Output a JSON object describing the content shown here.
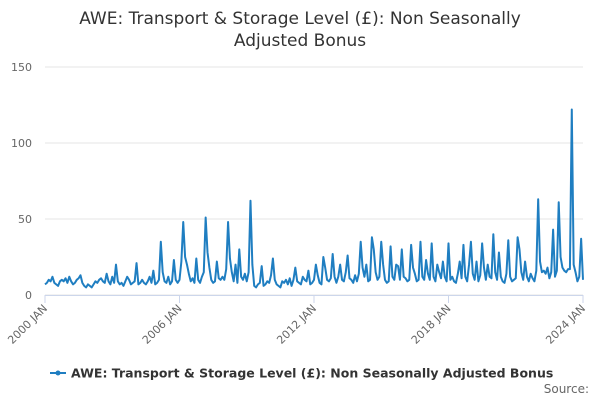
{
  "chart_data": {
    "type": "line",
    "title": "AWE: Transport & Storage Level (£): Non Seasonally Adjusted Bonus",
    "source": "Source:",
    "legend": "bottom",
    "grid": true,
    "ylim": [
      0,
      150
    ],
    "yticks": [
      0,
      50,
      100,
      150
    ],
    "xlim": [
      "2000-01",
      "2024-01"
    ],
    "xticks": [
      {
        "value": "2000-01",
        "label": "2000 JAN"
      },
      {
        "value": "2006-01",
        "label": "2006 JAN"
      },
      {
        "value": "2012-01",
        "label": "2012 JAN"
      },
      {
        "value": "2018-01",
        "label": "2018 JAN"
      },
      {
        "value": "2024-01",
        "label": "2024 JAN"
      }
    ],
    "x": [
      "2000-01",
      "2000-02",
      "2000-03",
      "2000-04",
      "2000-05",
      "2000-06",
      "2000-07",
      "2000-08",
      "2000-09",
      "2000-10",
      "2000-11",
      "2000-12",
      "2001-01",
      "2001-02",
      "2001-03",
      "2001-04",
      "2001-05",
      "2001-06",
      "2001-07",
      "2001-08",
      "2001-09",
      "2001-10",
      "2001-11",
      "2001-12",
      "2002-01",
      "2002-02",
      "2002-03",
      "2002-04",
      "2002-05",
      "2002-06",
      "2002-07",
      "2002-08",
      "2002-09",
      "2002-10",
      "2002-11",
      "2002-12",
      "2003-01",
      "2003-02",
      "2003-03",
      "2003-04",
      "2003-05",
      "2003-06",
      "2003-07",
      "2003-08",
      "2003-09",
      "2003-10",
      "2003-11",
      "2003-12",
      "2004-01",
      "2004-02",
      "2004-03",
      "2004-04",
      "2004-05",
      "2004-06",
      "2004-07",
      "2004-08",
      "2004-09",
      "2004-10",
      "2004-11",
      "2004-12",
      "2005-01",
      "2005-02",
      "2005-03",
      "2005-04",
      "2005-05",
      "2005-06",
      "2005-07",
      "2005-08",
      "2005-09",
      "2005-10",
      "2005-11",
      "2005-12",
      "2006-01",
      "2006-02",
      "2006-03",
      "2006-04",
      "2006-05",
      "2006-06",
      "2006-07",
      "2006-08",
      "2006-09",
      "2006-10",
      "2006-11",
      "2006-12",
      "2007-01",
      "2007-02",
      "2007-03",
      "2007-04",
      "2007-05",
      "2007-06",
      "2007-07",
      "2007-08",
      "2007-09",
      "2007-10",
      "2007-11",
      "2007-12",
      "2008-01",
      "2008-02",
      "2008-03",
      "2008-04",
      "2008-05",
      "2008-06",
      "2008-07",
      "2008-08",
      "2008-09",
      "2008-10",
      "2008-11",
      "2008-12",
      "2009-01",
      "2009-02",
      "2009-03",
      "2009-04",
      "2009-05",
      "2009-06",
      "2009-07",
      "2009-08",
      "2009-09",
      "2009-10",
      "2009-11",
      "2009-12",
      "2010-01",
      "2010-02",
      "2010-03",
      "2010-04",
      "2010-05",
      "2010-06",
      "2010-07",
      "2010-08",
      "2010-09",
      "2010-10",
      "2010-11",
      "2010-12",
      "2011-01",
      "2011-02",
      "2011-03",
      "2011-04",
      "2011-05",
      "2011-06",
      "2011-07",
      "2011-08",
      "2011-09",
      "2011-10",
      "2011-11",
      "2011-12",
      "2012-01",
      "2012-02",
      "2012-03",
      "2012-04",
      "2012-05",
      "2012-06",
      "2012-07",
      "2012-08",
      "2012-09",
      "2012-10",
      "2012-11",
      "2012-12",
      "2013-01",
      "2013-02",
      "2013-03",
      "2013-04",
      "2013-05",
      "2013-06",
      "2013-07",
      "2013-08",
      "2013-09",
      "2013-10",
      "2013-11",
      "2013-12",
      "2014-01",
      "2014-02",
      "2014-03",
      "2014-04",
      "2014-05",
      "2014-06",
      "2014-07",
      "2014-08",
      "2014-09",
      "2014-10",
      "2014-11",
      "2014-12",
      "2015-01",
      "2015-02",
      "2015-03",
      "2015-04",
      "2015-05",
      "2015-06",
      "2015-07",
      "2015-08",
      "2015-09",
      "2015-10",
      "2015-11",
      "2015-12",
      "2016-01",
      "2016-02",
      "2016-03",
      "2016-04",
      "2016-05",
      "2016-06",
      "2016-07",
      "2016-08",
      "2016-09",
      "2016-10",
      "2016-11",
      "2016-12",
      "2017-01",
      "2017-02",
      "2017-03",
      "2017-04",
      "2017-05",
      "2017-06",
      "2017-07",
      "2017-08",
      "2017-09",
      "2017-10",
      "2017-11",
      "2017-12",
      "2018-01",
      "2018-02",
      "2018-03",
      "2018-04",
      "2018-05",
      "2018-06",
      "2018-07",
      "2018-08",
      "2018-09",
      "2018-10",
      "2018-11",
      "2018-12",
      "2019-01",
      "2019-02",
      "2019-03",
      "2019-04",
      "2019-05",
      "2019-06",
      "2019-07",
      "2019-08",
      "2019-09",
      "2019-10",
      "2019-11",
      "2019-12",
      "2020-01",
      "2020-02",
      "2020-03",
      "2020-04",
      "2020-05",
      "2020-06",
      "2020-07",
      "2020-08",
      "2020-09",
      "2020-10",
      "2020-11",
      "2020-12",
      "2021-01",
      "2021-02",
      "2021-03",
      "2021-04",
      "2021-05",
      "2021-06",
      "2021-07",
      "2021-08",
      "2021-09",
      "2021-10",
      "2021-11",
      "2021-12",
      "2022-01",
      "2022-02",
      "2022-03",
      "2022-04",
      "2022-05",
      "2022-06",
      "2022-07",
      "2022-08",
      "2022-09",
      "2022-10",
      "2022-11",
      "2022-12",
      "2023-01",
      "2023-02",
      "2023-03",
      "2023-04",
      "2023-05",
      "2023-06",
      "2023-07",
      "2023-08",
      "2023-09",
      "2023-10",
      "2023-11",
      "2023-12",
      "2024-01"
    ],
    "series": [
      {
        "name": "AWE: Transport & Storage Level (£): Non Seasonally Adjusted Bonus",
        "color": "#1f7ec1",
        "values": [
          7,
          8,
          10,
          9,
          12,
          8,
          7,
          6,
          9,
          10,
          9,
          11,
          8,
          12,
          9,
          7,
          8,
          10,
          11,
          13,
          8,
          6,
          5,
          7,
          6,
          5,
          7,
          9,
          8,
          10,
          11,
          9,
          8,
          14,
          9,
          7,
          12,
          8,
          20,
          9,
          7,
          8,
          6,
          9,
          12,
          10,
          7,
          8,
          9,
          21,
          7,
          8,
          10,
          8,
          7,
          9,
          12,
          8,
          16,
          7,
          8,
          10,
          35,
          15,
          9,
          8,
          12,
          7,
          9,
          23,
          10,
          8,
          10,
          22,
          48,
          25,
          20,
          14,
          9,
          11,
          8,
          24,
          10,
          8,
          12,
          15,
          51,
          28,
          18,
          10,
          8,
          9,
          22,
          11,
          10,
          12,
          10,
          17,
          48,
          24,
          15,
          9,
          20,
          8,
          30,
          12,
          10,
          14,
          9,
          15,
          62,
          20,
          6,
          5,
          7,
          8,
          19,
          6,
          7,
          9,
          8,
          13,
          24,
          10,
          7,
          6,
          5,
          9,
          8,
          10,
          7,
          11,
          6,
          10,
          18,
          9,
          8,
          7,
          12,
          10,
          9,
          16,
          7,
          8,
          10,
          20,
          13,
          8,
          7,
          25,
          18,
          10,
          9,
          11,
          27,
          12,
          8,
          12,
          20,
          10,
          9,
          15,
          26,
          11,
          10,
          8,
          13,
          9,
          14,
          35,
          18,
          12,
          20,
          9,
          10,
          38,
          30,
          15,
          10,
          12,
          35,
          20,
          10,
          8,
          9,
          32,
          12,
          10,
          20,
          19,
          10,
          30,
          12,
          11,
          9,
          10,
          33,
          18,
          14,
          9,
          10,
          35,
          12,
          10,
          23,
          14,
          10,
          34,
          12,
          9,
          20,
          15,
          11,
          22,
          12,
          9,
          34,
          10,
          12,
          9,
          8,
          14,
          22,
          11,
          33,
          12,
          9,
          20,
          35,
          14,
          10,
          22,
          9,
          13,
          34,
          18,
          10,
          20,
          12,
          11,
          40,
          15,
          10,
          28,
          12,
          9,
          8,
          14,
          36,
          12,
          9,
          10,
          11,
          38,
          30,
          15,
          10,
          22,
          12,
          9,
          14,
          11,
          9,
          16,
          63,
          22,
          15,
          16,
          14,
          18,
          11,
          15,
          43,
          12,
          16,
          61,
          25,
          18,
          16,
          15,
          17,
          17,
          122,
          20,
          15,
          9,
          12,
          37,
          10
        ]
      }
    ]
  }
}
